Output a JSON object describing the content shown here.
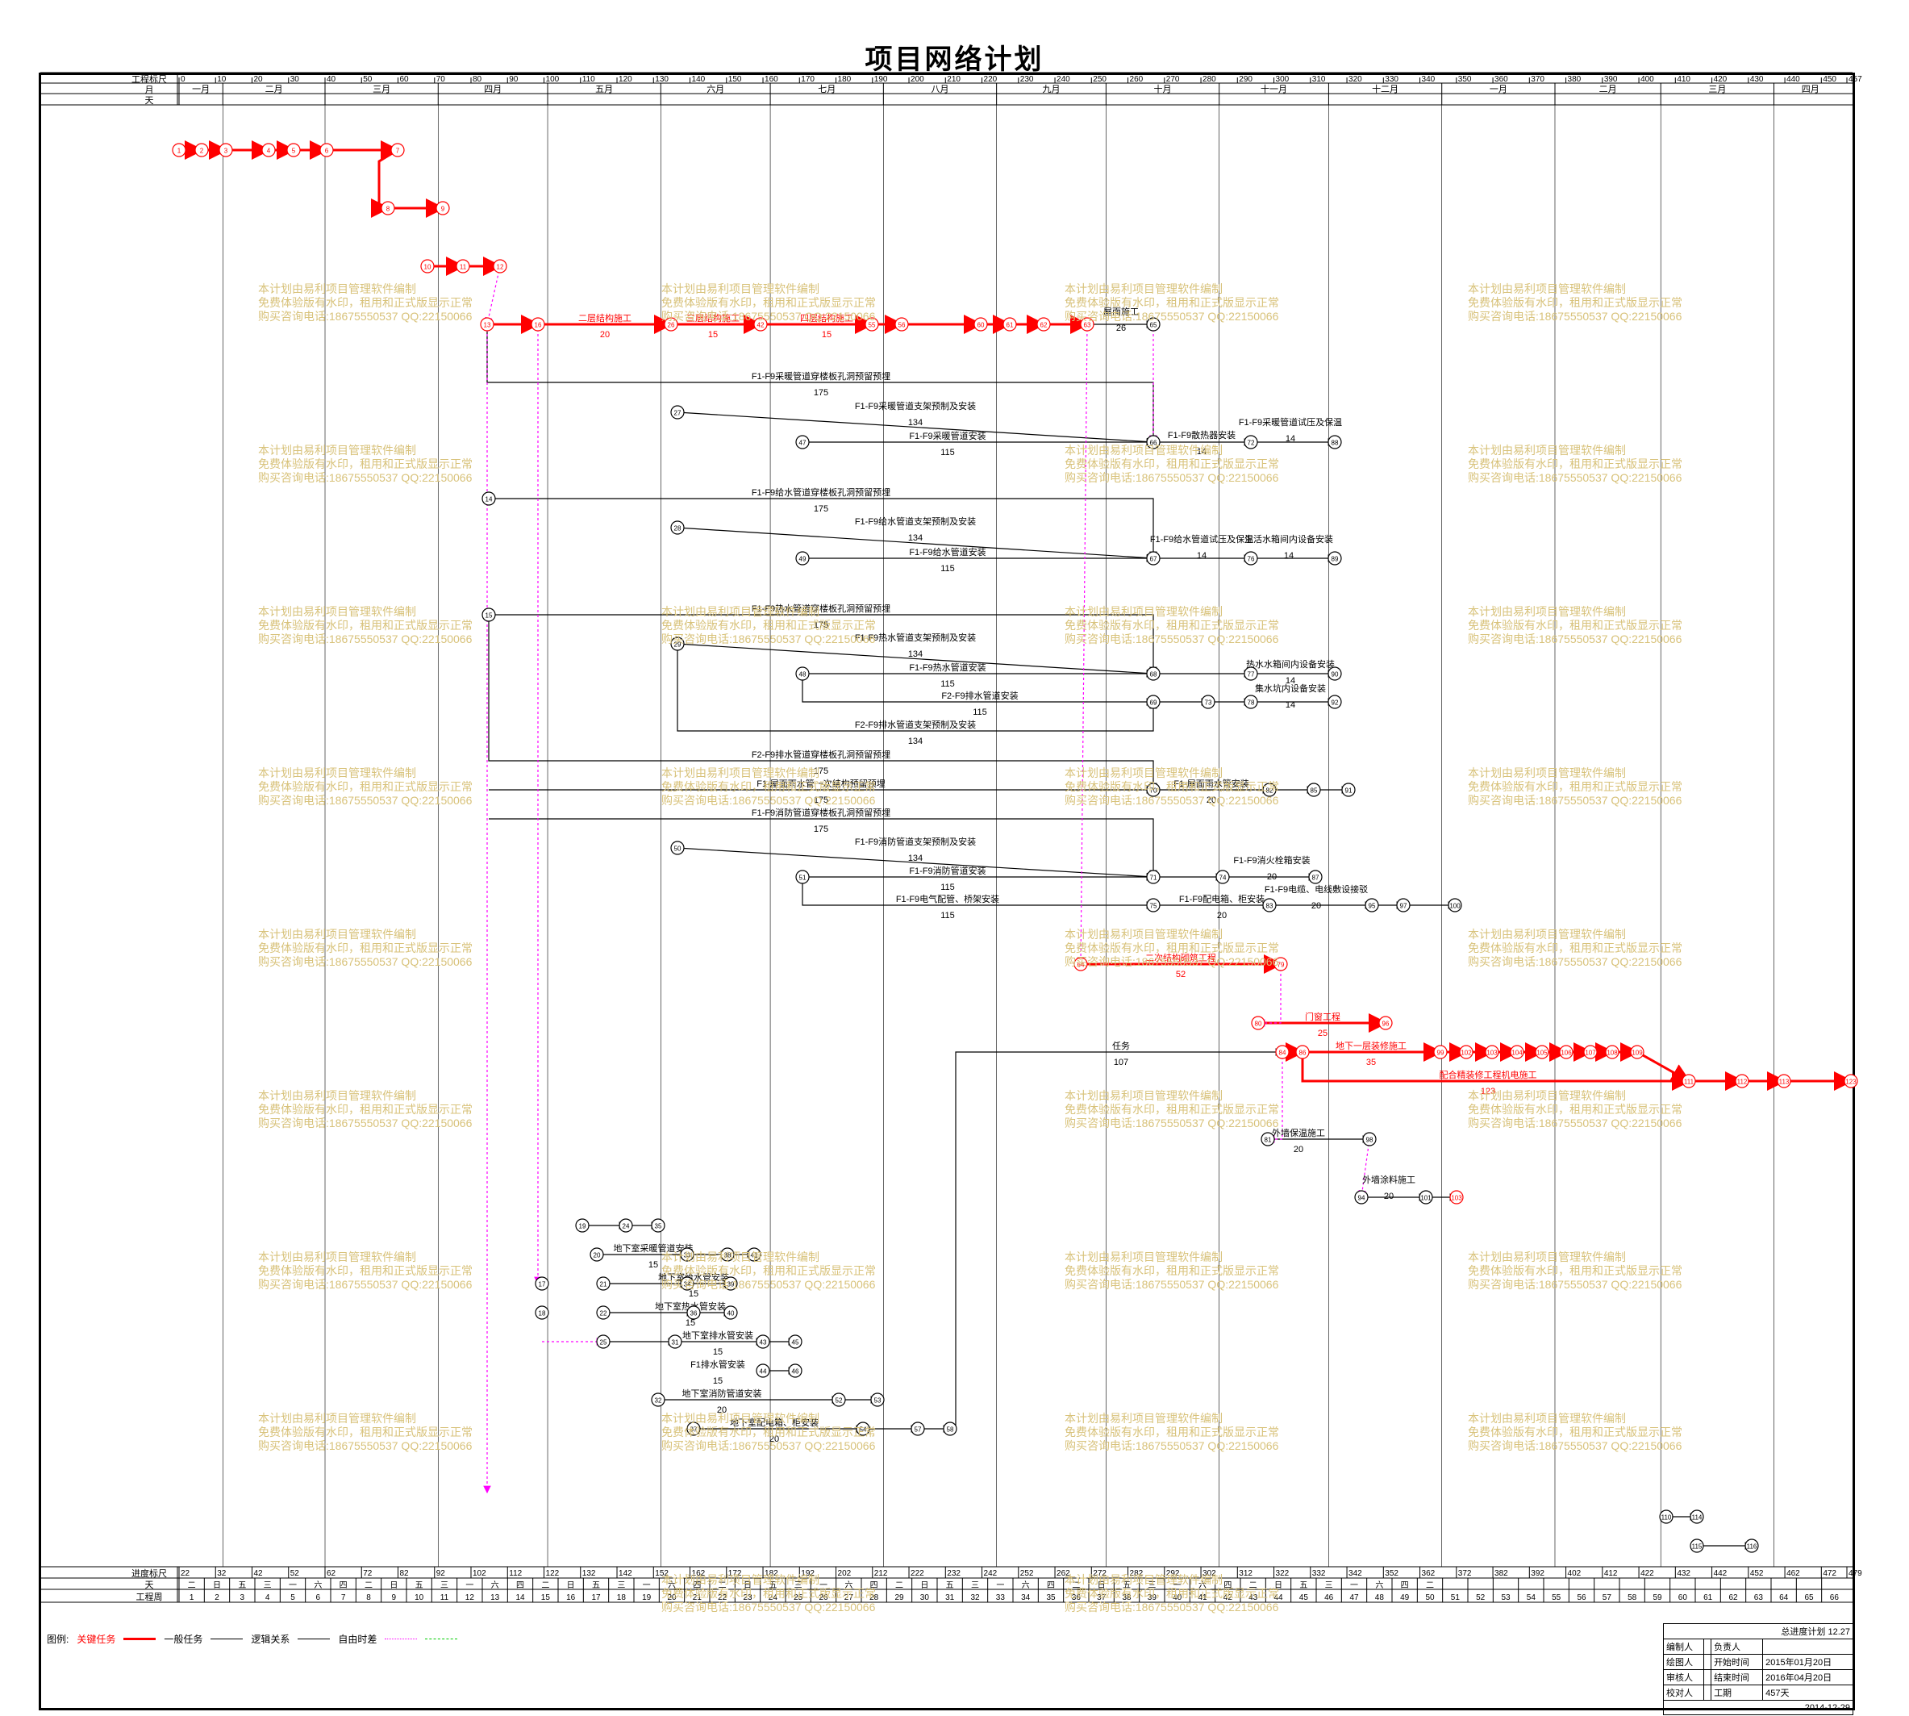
{
  "title": "项目网络计划",
  "scale_labels": {
    "top_ruler": "工程标尺",
    "month": "月",
    "day": "天",
    "bottom_ruler": "进度标尺",
    "weekday": "天",
    "week": "工程周"
  },
  "top_ruler_ticks": [
    "0",
    "10",
    "20",
    "30",
    "40",
    "50",
    "60",
    "70",
    "80",
    "90",
    "100",
    "110",
    "120",
    "130",
    "140",
    "150",
    "160",
    "170",
    "180",
    "190",
    "200",
    "210",
    "220",
    "230",
    "240",
    "250",
    "260",
    "270",
    "280",
    "290",
    "300",
    "310",
    "320",
    "330",
    "340",
    "350",
    "360",
    "370",
    "380",
    "390",
    "400",
    "410",
    "420",
    "430",
    "440",
    "450",
    "457"
  ],
  "months": [
    "一月",
    "二月",
    "三月",
    "四月",
    "五月",
    "六月",
    "七月",
    "八月",
    "九月",
    "十月",
    "十一月",
    "十二月",
    "一月",
    "二月",
    "三月",
    "四月"
  ],
  "bottom_ruler_ticks": [
    "22",
    "32",
    "42",
    "52",
    "62",
    "72",
    "82",
    "92",
    "102",
    "112",
    "122",
    "132",
    "142",
    "152",
    "162",
    "172",
    "182",
    "192",
    "202",
    "212",
    "222",
    "232",
    "242",
    "252",
    "262",
    "272",
    "282",
    "292",
    "302",
    "312",
    "322",
    "332",
    "342",
    "352",
    "362",
    "372",
    "382",
    "392",
    "402",
    "412",
    "422",
    "432",
    "442",
    "452",
    "462",
    "472",
    "479"
  ],
  "weekdays": [
    "二",
    "日",
    "五",
    "三",
    "一",
    "六",
    "四",
    "二",
    "日",
    "五",
    "三",
    "一",
    "六",
    "四",
    "二",
    "日",
    "五",
    "三",
    "一",
    "六",
    "四",
    "二",
    "日",
    "五",
    "三",
    "一",
    "六",
    "四",
    "二",
    "日",
    "五",
    "三",
    "一",
    "六",
    "四",
    "二",
    "日",
    "五",
    "三",
    "一",
    "六",
    "四",
    "二",
    "日",
    "五",
    "三",
    "一",
    "六",
    "四",
    "二"
  ],
  "weeks": [
    "1",
    "2",
    "3",
    "4",
    "5",
    "6",
    "7",
    "8",
    "9",
    "10",
    "11",
    "12",
    "13",
    "14",
    "15",
    "16",
    "17",
    "18",
    "19",
    "20",
    "21",
    "22",
    "23",
    "24",
    "25",
    "26",
    "27",
    "28",
    "29",
    "30",
    "31",
    "32",
    "33",
    "34",
    "35",
    "36",
    "37",
    "38",
    "39",
    "40",
    "41",
    "42",
    "43",
    "44",
    "45",
    "46",
    "47",
    "48",
    "49",
    "50",
    "51",
    "52",
    "53",
    "54",
    "55",
    "56",
    "57",
    "58",
    "59",
    "60",
    "61",
    "62",
    "63",
    "64",
    "65",
    "66"
  ],
  "tasks": [
    {
      "label": "二层结构施工",
      "duration": "20",
      "critical": true
    },
    {
      "label": "三层结构施工",
      "duration": "15",
      "critical": true
    },
    {
      "label": "四层结构施工",
      "duration": "15",
      "critical": true
    },
    {
      "label": "屋面施工",
      "duration": "26",
      "critical": false
    },
    {
      "label": "F1-F9采暖管道穿楼板孔洞预留预埋",
      "duration": "175",
      "critical": false
    },
    {
      "label": "F1-F9采暖管道支架预制及安装",
      "duration": "134",
      "critical": false
    },
    {
      "label": "F1-F9采暖管道安装",
      "duration": "115",
      "critical": false
    },
    {
      "label": "F1-F9散热器安装",
      "duration": "14",
      "critical": false
    },
    {
      "label": "F1-F9采暖管道试压及保温",
      "duration": "14",
      "critical": false
    },
    {
      "label": "F1-F9给水管道穿楼板孔洞预留预埋",
      "duration": "175",
      "critical": false
    },
    {
      "label": "F1-F9给水管道支架预制及安装",
      "duration": "134",
      "critical": false
    },
    {
      "label": "F1-F9给水管道安装",
      "duration": "115",
      "critical": false
    },
    {
      "label": "F1-F9给水管道试压及保温",
      "duration": "14",
      "critical": false
    },
    {
      "label": "生活水箱间内设备安装",
      "duration": "14",
      "critical": false
    },
    {
      "label": "F1-F9热水管道穿楼板孔洞预留预埋",
      "duration": "175",
      "critical": false
    },
    {
      "label": "F1-F9热水管道支架预制及安装",
      "duration": "134",
      "critical": false
    },
    {
      "label": "F1-F9热水管道安装",
      "duration": "115",
      "critical": false
    },
    {
      "label": "F2-F9排水管道安装",
      "duration": "115",
      "critical": false
    },
    {
      "label": "热水水箱间内设备安装",
      "duration": "14",
      "critical": false
    },
    {
      "label": "集水坑内设备安装",
      "duration": "14",
      "critical": false
    },
    {
      "label": "F2-F9排水管道支架预制及安装",
      "duration": "134",
      "critical": false
    },
    {
      "label": "F2-F9排水管道穿楼板孔洞预留预埋",
      "duration": "175",
      "critical": false
    },
    {
      "label": "F1-屋面雨水管一次结构预留预埋",
      "duration": "175",
      "critical": false
    },
    {
      "label": "F1-屋面雨水管安装",
      "duration": "20",
      "critical": false
    },
    {
      "label": "F1-F9消防管道穿楼板孔洞预留预埋",
      "duration": "175",
      "critical": false
    },
    {
      "label": "F1-F9消防管道支架预制及安装",
      "duration": "134",
      "critical": false
    },
    {
      "label": "F1-F9消防管道安装",
      "duration": "115",
      "critical": false
    },
    {
      "label": "F1-F9电气配管、桥架安装",
      "duration": "115",
      "critical": false
    },
    {
      "label": "F1-F9配电箱、柜安装",
      "duration": "20",
      "critical": false
    },
    {
      "label": "F1-F9消火栓箱安装",
      "duration": "20",
      "critical": false
    },
    {
      "label": "F1-F9电缆、电线敷设接驳",
      "duration": "20",
      "critical": false
    },
    {
      "label": "二次结构砌筑工程",
      "duration": "52",
      "critical": true
    },
    {
      "label": "门窗工程",
      "duration": "25",
      "critical": true
    },
    {
      "label": "地下一层装修施工",
      "duration": "35",
      "critical": true
    },
    {
      "label": "配合精装修工程机电施工",
      "duration": "123",
      "critical": true
    },
    {
      "label": "任务",
      "duration": "107",
      "critical": false
    },
    {
      "label": "外墙保温施工",
      "duration": "20",
      "critical": false
    },
    {
      "label": "外墙涂料施工",
      "duration": "20",
      "critical": false
    },
    {
      "label": "地下室采暖管道安装",
      "duration": "15",
      "critical": false
    },
    {
      "label": "地下室给水管安装",
      "duration": "15",
      "critical": false
    },
    {
      "label": "地下室热水管安装",
      "duration": "15",
      "critical": false
    },
    {
      "label": "地下室排水管安装",
      "duration": "15",
      "critical": false
    },
    {
      "label": "F1排水管安装",
      "duration": "15",
      "critical": false
    },
    {
      "label": "地下室消防管道安装",
      "duration": "20",
      "critical": false
    },
    {
      "label": "地下室配电箱、柜安装",
      "duration": "20",
      "critical": false
    }
  ],
  "node_numbers": [
    "1",
    "2",
    "3",
    "4",
    "5",
    "6",
    "7",
    "8",
    "9",
    "10",
    "11",
    "12",
    "13",
    "14",
    "15",
    "16",
    "17",
    "18",
    "19",
    "20",
    "21",
    "22",
    "23",
    "24",
    "25",
    "26",
    "27",
    "28",
    "29",
    "30",
    "31",
    "32",
    "33",
    "34",
    "35",
    "36",
    "37",
    "38",
    "39",
    "40",
    "41",
    "42",
    "43",
    "44",
    "45",
    "46",
    "47",
    "48",
    "49",
    "50",
    "51",
    "52",
    "53",
    "54",
    "55",
    "56",
    "57",
    "58",
    "59",
    "60",
    "61",
    "62",
    "63",
    "64",
    "65",
    "66",
    "67",
    "68",
    "69",
    "70",
    "71",
    "72",
    "73",
    "74",
    "75",
    "76",
    "77",
    "78",
    "79",
    "80",
    "81",
    "82",
    "83",
    "84",
    "85",
    "86",
    "87",
    "88",
    "89",
    "90",
    "91",
    "92",
    "93",
    "94",
    "95",
    "96",
    "97",
    "98",
    "99",
    "100",
    "101",
    "102",
    "103",
    "104",
    "105",
    "106",
    "107",
    "108",
    "109",
    "110",
    "111",
    "112",
    "113",
    "114",
    "115",
    "116",
    "117",
    "118",
    "119",
    "120",
    "121",
    "122",
    "123"
  ],
  "watermark": {
    "line1": "本计划由易利项目管理软件编制",
    "line2": "免费体验版有水印，租用和正式版显示正常",
    "line3": "购买咨询电话:18675550537 QQ:22150066"
  },
  "legend": {
    "label": "图例:",
    "critical": "关键任务",
    "normal": "一般任务",
    "logic": "逻辑关系",
    "float": "自由时差"
  },
  "info_table": {
    "header": "总进度计划 12.27",
    "rows": [
      [
        "编制人",
        "",
        "负责人",
        ""
      ],
      [
        "绘图人",
        "",
        "开始时间",
        "2015年01月20日"
      ],
      [
        "审核人",
        "",
        "结束时间",
        "2016年04月20日"
      ],
      [
        "校对人",
        "",
        "工期",
        "457天"
      ]
    ],
    "date": "2014-12-29"
  },
  "colors": {
    "critical": "#ff0000",
    "normal": "#000000",
    "float": "#ff00ff",
    "watermark": "#d8c27a",
    "lag": "#00c000"
  }
}
